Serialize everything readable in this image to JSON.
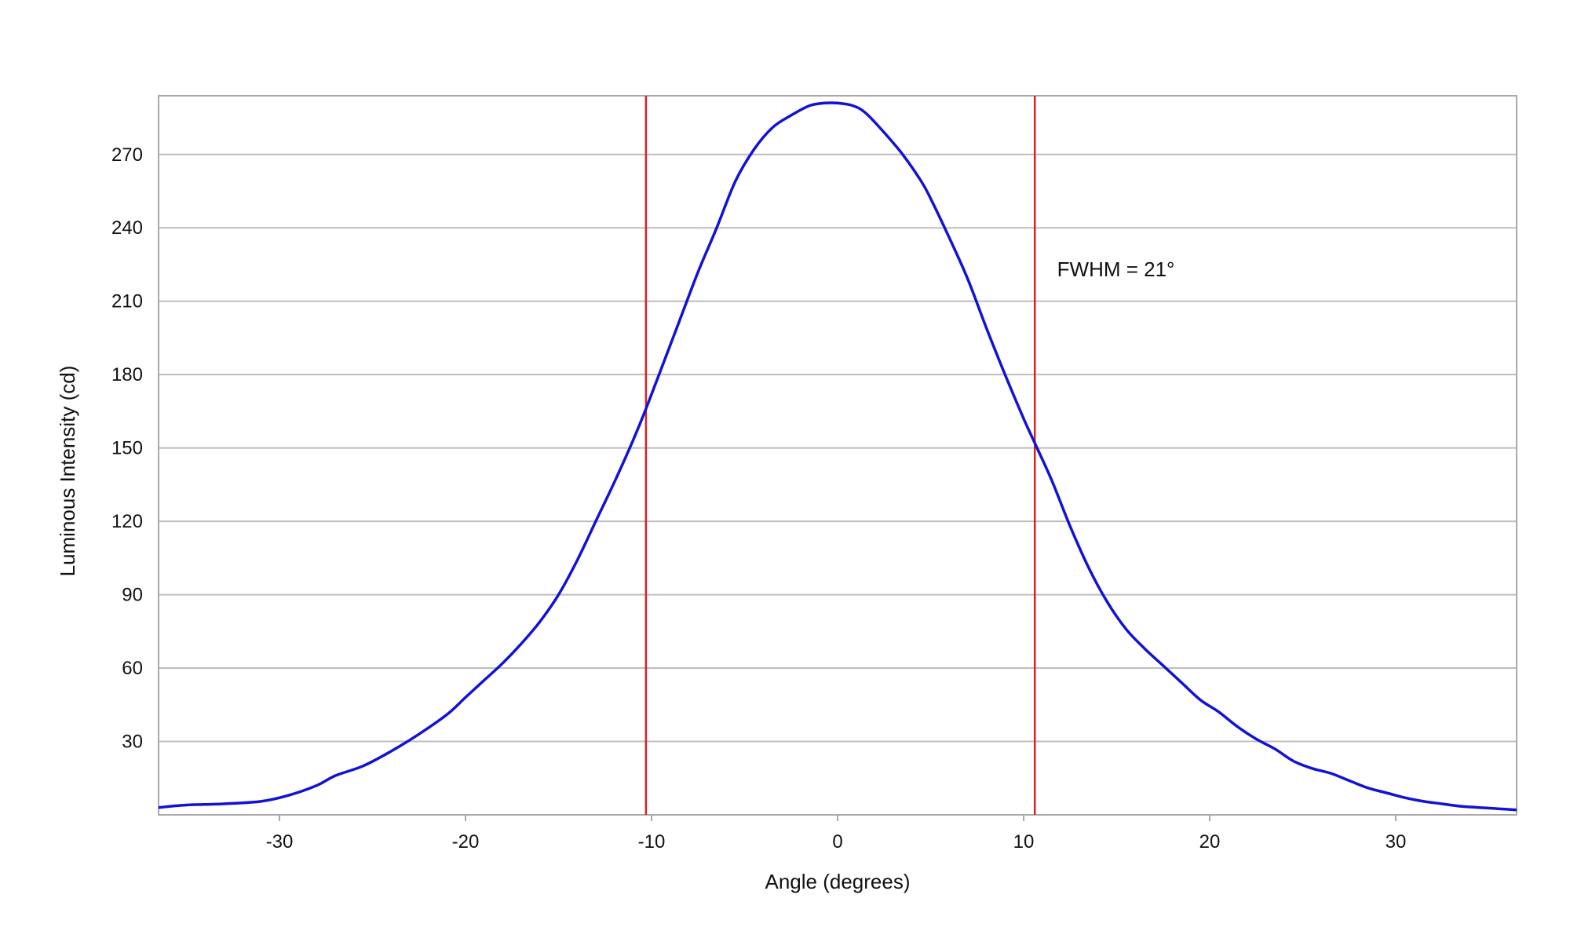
{
  "chart_data": {
    "type": "line",
    "title": "",
    "xlabel": "Angle (degrees)",
    "ylabel": "Luminous Intensity (cd)",
    "xlim": [
      -36.5,
      36.5
    ],
    "ylim": [
      0,
      294
    ],
    "x_ticks": [
      -30,
      -20,
      -10,
      0,
      10,
      20,
      30
    ],
    "y_ticks": [
      30,
      60,
      90,
      120,
      150,
      180,
      210,
      240,
      270
    ],
    "grid": "horizontal",
    "legend": "none",
    "colors": {
      "curve": "#1212d6",
      "markers": "#dd1f1f",
      "grid": "#bdbdbd",
      "frame": "#a9a9a9"
    },
    "series": [
      {
        "x": [
          -36.5,
          -35,
          -33,
          -31,
          -29.5,
          -28,
          -27,
          -25.5,
          -24,
          -22.5,
          -21,
          -20,
          -19,
          -18,
          -17,
          -16,
          -15,
          -14,
          -13,
          -12,
          -11,
          -10.3,
          -9.5,
          -8.5,
          -7.5,
          -6.5,
          -5.5,
          -4.5,
          -3.5,
          -2.5,
          -1.5,
          -0.7,
          0,
          0.8,
          1.5,
          2.5,
          3.5,
          4.5,
          5,
          6,
          7,
          8,
          9,
          10,
          10.6,
          11.5,
          12.5,
          13.5,
          14.5,
          15.5,
          16.5,
          17.5,
          18.5,
          19.5,
          20.5,
          21.5,
          22.5,
          23.5,
          24.5,
          25.5,
          26.5,
          27.5,
          28.5,
          29.5,
          30.5,
          31.5,
          32.5,
          33.5,
          34.5,
          35.5,
          36.5
        ],
        "y": [
          3,
          4,
          4.5,
          5.5,
          8,
          12,
          16,
          20,
          26,
          33,
          41,
          48,
          55,
          62,
          70,
          79,
          90,
          104,
          120,
          136,
          153,
          166,
          182,
          202,
          222,
          240,
          259,
          272,
          281,
          286,
          290,
          291,
          291,
          290,
          287,
          279,
          270,
          259,
          252,
          236,
          219,
          199,
          180,
          162,
          152,
          137,
          118,
          101,
          87,
          76,
          68,
          61,
          54,
          47,
          42,
          36,
          31,
          27,
          22,
          19,
          17,
          14,
          11,
          9,
          7,
          5.5,
          4.5,
          3.5,
          3,
          2.5,
          2
        ]
      }
    ],
    "vertical_lines": [
      -10.3,
      10.6
    ],
    "annotation": {
      "text": "FWHM = 21°",
      "x": 11.8,
      "y": 223
    }
  }
}
